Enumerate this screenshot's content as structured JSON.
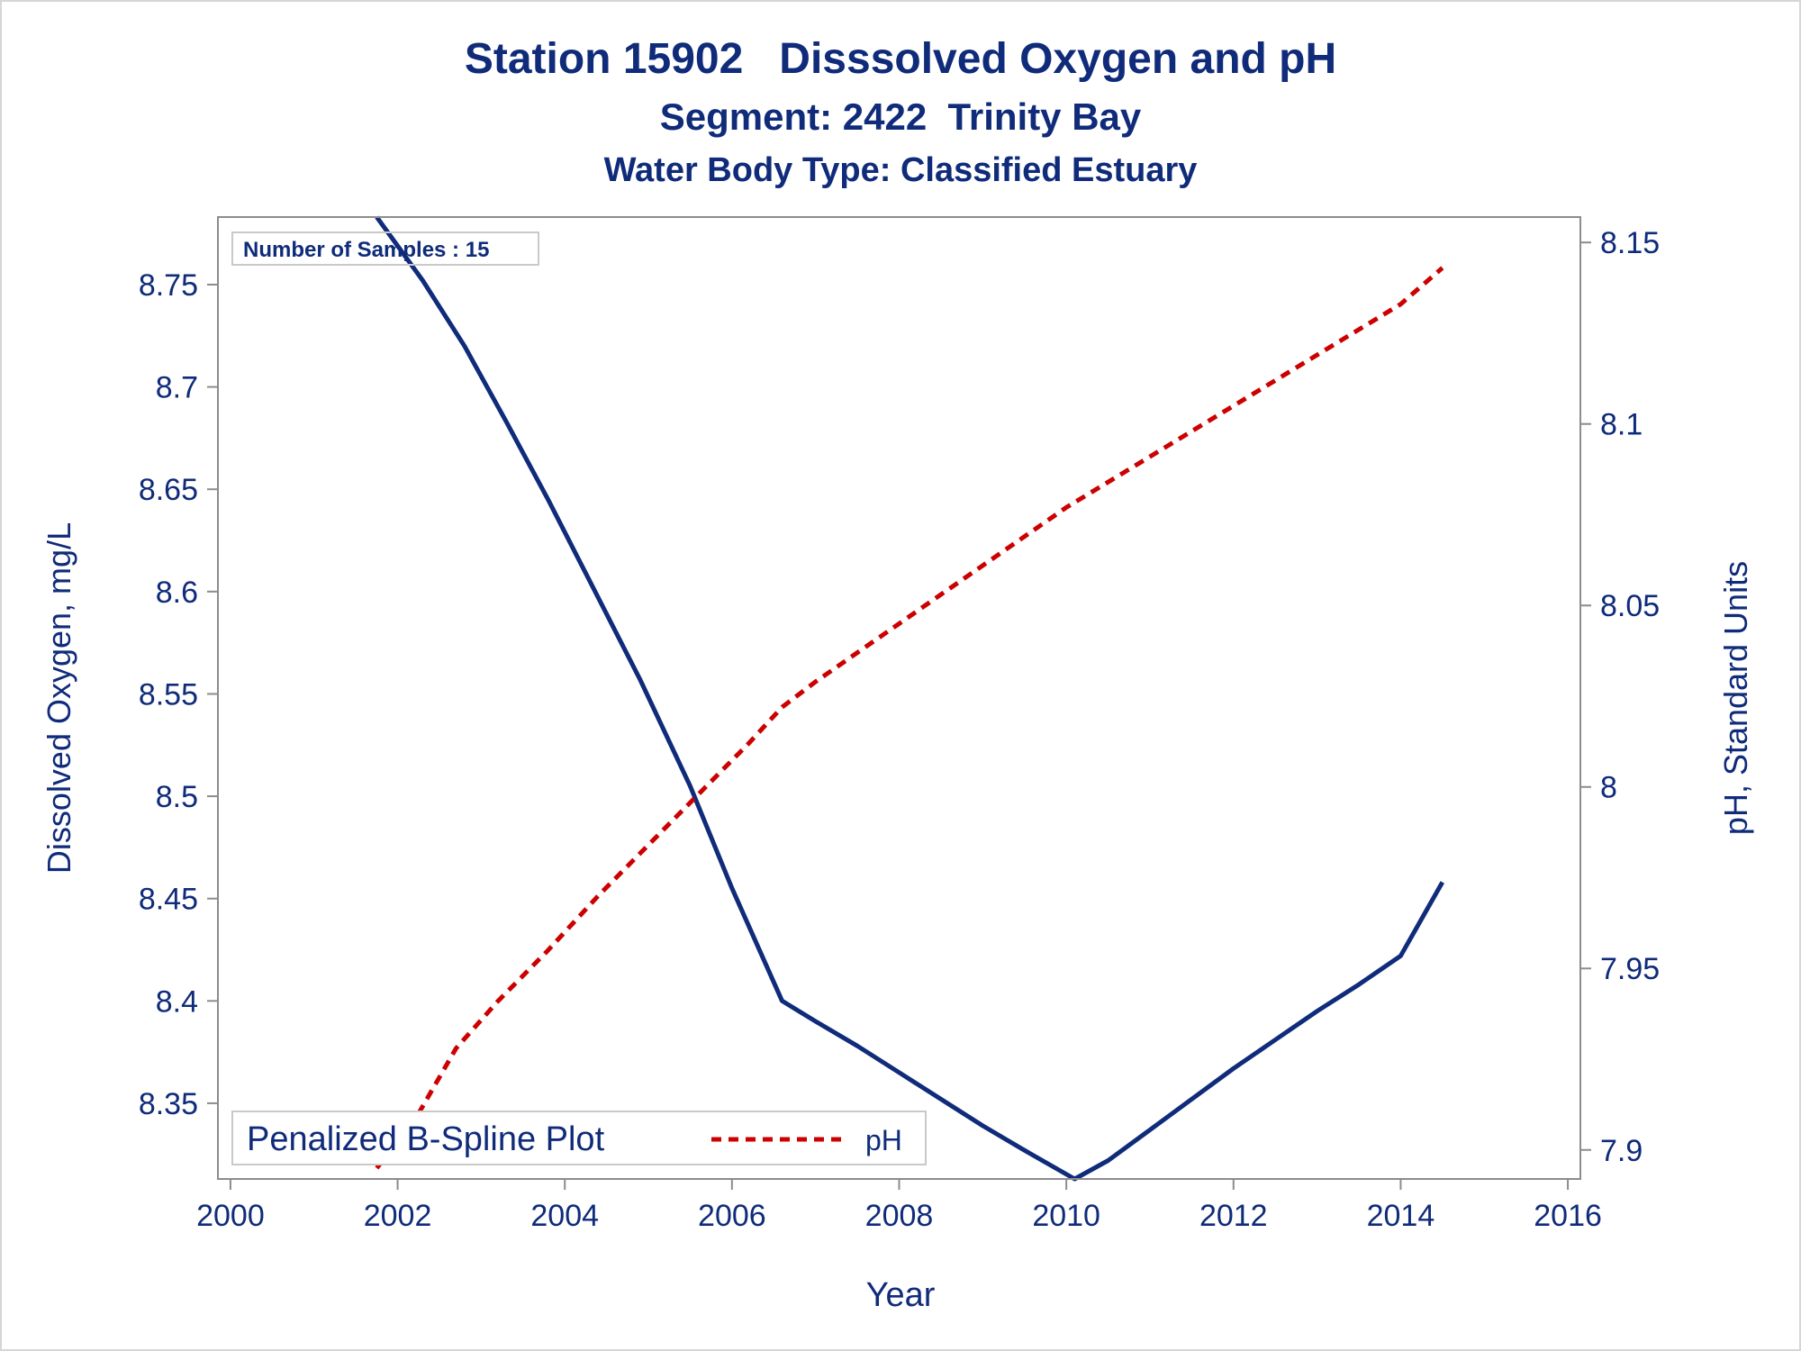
{
  "titles": {
    "line1": "Station 15902   Disssolved Oxygen and pH",
    "line2": "Segment: 2422  Trinity Bay",
    "line3": "Water Body Type: Classified Estuary"
  },
  "inset": {
    "samples_label": "Number of Samples : 15"
  },
  "legend": {
    "plot_label": "Penalized B-Spline Plot",
    "ph_label": "pH"
  },
  "colors": {
    "text": "#0f2b7a",
    "do_line": "#0f2b7a",
    "ph_line": "#cc0000",
    "axis": "#8c8c8c"
  },
  "chart_data": {
    "type": "line",
    "xlabel": "Year",
    "ylabel_left": "Dissolved Oxygen, mg/L",
    "ylabel_right": "pH, Standard Units",
    "xlim": [
      1999.85,
      2016.15
    ],
    "ylim_left": [
      8.313,
      8.783
    ],
    "ylim_right": [
      7.892,
      8.157
    ],
    "x_ticks": [
      2000,
      2002,
      2004,
      2006,
      2008,
      2010,
      2012,
      2014,
      2016
    ],
    "x_tick_labels": [
      "2000",
      "2002",
      "2004",
      "2006",
      "2008",
      "2010",
      "2012",
      "2014",
      "2016"
    ],
    "y_left_ticks": [
      8.35,
      8.4,
      8.45,
      8.5,
      8.55,
      8.6,
      8.65,
      8.7,
      8.75
    ],
    "y_left_tick_labels": [
      "8.35",
      "8.4",
      "8.45",
      "8.5",
      "8.55",
      "8.6",
      "8.65",
      "8.7",
      "8.75"
    ],
    "y_right_ticks": [
      7.9,
      7.95,
      8.0,
      8.05,
      8.1,
      8.15
    ],
    "y_right_tick_labels": [
      "7.9",
      "7.95",
      "8",
      "8.05",
      "8.1",
      "8.15"
    ],
    "grid": false,
    "legend_position": "bottom-left",
    "series": [
      {
        "name": "Dissolved Oxygen",
        "axis": "left",
        "style": "solid",
        "x": [
          2001.75,
          2002.3,
          2002.8,
          2003.3,
          2003.8,
          2004.3,
          2004.9,
          2005.5,
          2006.0,
          2006.6,
          2007.0,
          2007.5,
          2008.0,
          2008.5,
          2009.0,
          2009.5,
          2010.1,
          2010.5,
          2011.0,
          2011.5,
          2012.0,
          2012.5,
          2013.0,
          2013.5,
          2014.0,
          2014.5
        ],
        "y": [
          8.783,
          8.752,
          8.72,
          8.683,
          8.645,
          8.605,
          8.557,
          8.505,
          8.455,
          8.4,
          8.39,
          8.378,
          8.365,
          8.352,
          8.339,
          8.327,
          8.313,
          8.322,
          8.337,
          8.352,
          8.367,
          8.381,
          8.395,
          8.408,
          8.422,
          8.458
        ]
      },
      {
        "name": "pH",
        "axis": "right",
        "style": "dashed",
        "x": [
          2001.75,
          2002.2,
          2002.7,
          2003.2,
          2003.8,
          2004.4,
          2005.0,
          2005.6,
          2006.2,
          2006.6,
          2007.0,
          2007.5,
          2008.0,
          2008.5,
          2009.0,
          2009.5,
          2010.0,
          2010.5,
          2011.0,
          2011.5,
          2012.0,
          2012.5,
          2013.0,
          2013.5,
          2014.0,
          2014.5
        ],
        "y": [
          7.895,
          7.908,
          7.928,
          7.941,
          7.955,
          7.97,
          7.984,
          7.998,
          8.012,
          8.022,
          8.029,
          8.037,
          8.045,
          8.053,
          8.061,
          8.069,
          8.077,
          8.084,
          8.091,
          8.098,
          8.105,
          8.112,
          8.119,
          8.126,
          8.133,
          8.143
        ]
      }
    ]
  }
}
